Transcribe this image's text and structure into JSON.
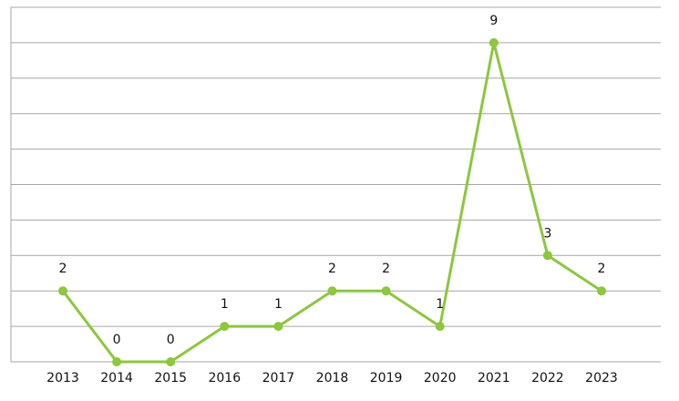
{
  "chart_data": {
    "type": "line",
    "categories": [
      "2013",
      "2014",
      "2015",
      "2016",
      "2017",
      "2018",
      "2019",
      "2020",
      "2021",
      "2022",
      "2023"
    ],
    "series": [
      {
        "color": "#8dc63f",
        "values": [
          2,
          0,
          0,
          1,
          1,
          2,
          2,
          1,
          9,
          3,
          2
        ]
      }
    ],
    "ylim": [
      0,
      10
    ],
    "yticks": [
      0,
      1,
      2,
      3,
      4,
      5,
      6,
      7,
      8,
      9,
      10
    ],
    "grid": true,
    "data_labels": true
  }
}
